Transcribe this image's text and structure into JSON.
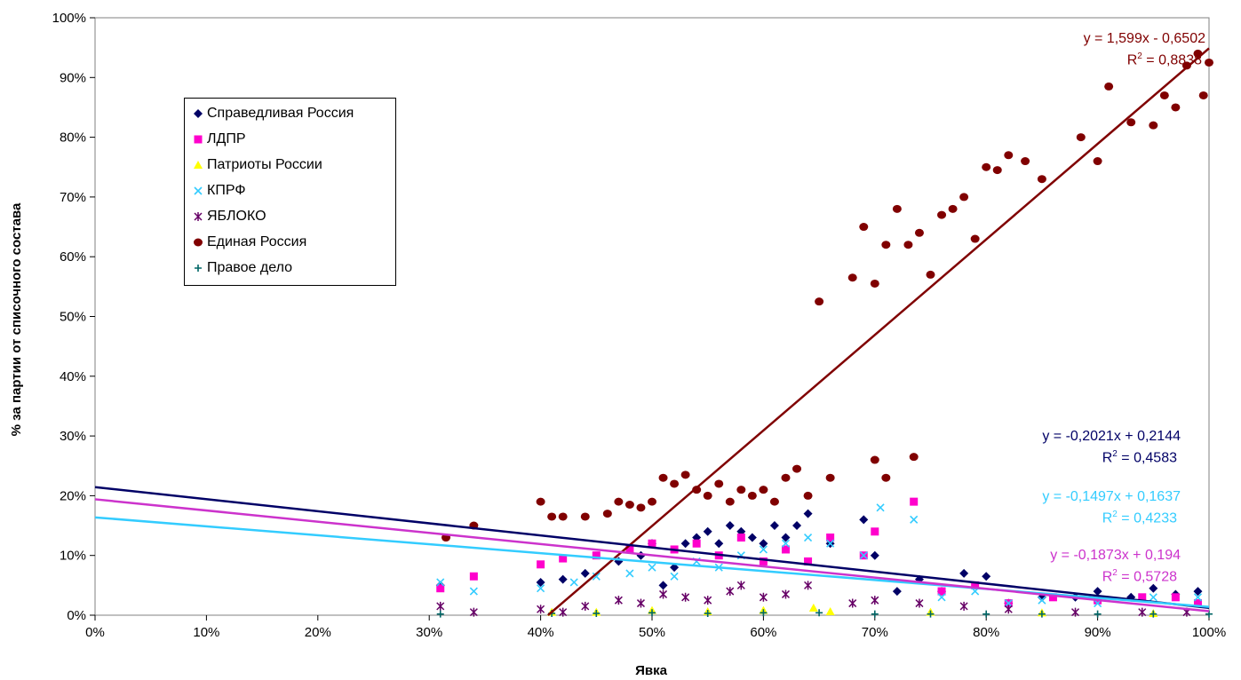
{
  "chart_data": {
    "type": "scatter",
    "xlabel": "Явка",
    "ylabel": "% за партии от списочного состава",
    "xlim": [
      0,
      1
    ],
    "ylim": [
      0,
      1
    ],
    "x_ticks": [
      "0%",
      "10%",
      "20%",
      "30%",
      "40%",
      "50%",
      "60%",
      "70%",
      "80%",
      "90%",
      "100%"
    ],
    "y_ticks": [
      "0%",
      "10%",
      "20%",
      "30%",
      "40%",
      "50%",
      "60%",
      "70%",
      "80%",
      "90%",
      "100%"
    ],
    "grid": false,
    "legend_position": "top-left",
    "series": [
      {
        "name": "Справедливая Россия",
        "color": "#000066",
        "marker": "diamond",
        "points": [
          [
            0.31,
            0.05
          ],
          [
            0.4,
            0.055
          ],
          [
            0.42,
            0.06
          ],
          [
            0.44,
            0.07
          ],
          [
            0.47,
            0.09
          ],
          [
            0.49,
            0.1
          ],
          [
            0.5,
            0.12
          ],
          [
            0.51,
            0.05
          ],
          [
            0.52,
            0.08
          ],
          [
            0.53,
            0.12
          ],
          [
            0.54,
            0.13
          ],
          [
            0.55,
            0.14
          ],
          [
            0.56,
            0.12
          ],
          [
            0.57,
            0.15
          ],
          [
            0.58,
            0.14
          ],
          [
            0.59,
            0.13
          ],
          [
            0.6,
            0.12
          ],
          [
            0.61,
            0.15
          ],
          [
            0.62,
            0.13
          ],
          [
            0.63,
            0.15
          ],
          [
            0.64,
            0.17
          ],
          [
            0.66,
            0.12
          ],
          [
            0.69,
            0.16
          ],
          [
            0.7,
            0.1
          ],
          [
            0.72,
            0.04
          ],
          [
            0.74,
            0.06
          ],
          [
            0.76,
            0.04
          ],
          [
            0.78,
            0.07
          ],
          [
            0.8,
            0.065
          ],
          [
            0.82,
            0.02
          ],
          [
            0.85,
            0.03
          ],
          [
            0.88,
            0.03
          ],
          [
            0.9,
            0.04
          ],
          [
            0.93,
            0.03
          ],
          [
            0.95,
            0.045
          ],
          [
            0.97,
            0.035
          ],
          [
            0.99,
            0.04
          ]
        ]
      },
      {
        "name": "ЛДПР",
        "color": "#FF00CC",
        "marker": "square",
        "points": [
          [
            0.31,
            0.045
          ],
          [
            0.34,
            0.065
          ],
          [
            0.4,
            0.085
          ],
          [
            0.42,
            0.095
          ],
          [
            0.45,
            0.1
          ],
          [
            0.48,
            0.11
          ],
          [
            0.5,
            0.12
          ],
          [
            0.52,
            0.11
          ],
          [
            0.54,
            0.12
          ],
          [
            0.56,
            0.1
          ],
          [
            0.58,
            0.13
          ],
          [
            0.6,
            0.09
          ],
          [
            0.62,
            0.11
          ],
          [
            0.64,
            0.09
          ],
          [
            0.66,
            0.13
          ],
          [
            0.69,
            0.1
          ],
          [
            0.7,
            0.14
          ],
          [
            0.735,
            0.19
          ],
          [
            0.76,
            0.04
          ],
          [
            0.79,
            0.05
          ],
          [
            0.82,
            0.02
          ],
          [
            0.86,
            0.03
          ],
          [
            0.9,
            0.025
          ],
          [
            0.94,
            0.03
          ],
          [
            0.97,
            0.03
          ],
          [
            0.99,
            0.02
          ]
        ]
      },
      {
        "name": "Патриоты России",
        "color": "#FFFF00",
        "marker": "triangle",
        "points": [
          [
            0.41,
            0.005
          ],
          [
            0.45,
            0.005
          ],
          [
            0.5,
            0.008
          ],
          [
            0.55,
            0.006
          ],
          [
            0.6,
            0.008
          ],
          [
            0.645,
            0.012
          ],
          [
            0.66,
            0.006
          ],
          [
            0.75,
            0.005
          ],
          [
            0.85,
            0.004
          ],
          [
            0.95,
            0.003
          ]
        ]
      },
      {
        "name": "КПРФ",
        "color": "#33CCFF",
        "marker": "x",
        "points": [
          [
            0.31,
            0.055
          ],
          [
            0.34,
            0.04
          ],
          [
            0.4,
            0.045
          ],
          [
            0.43,
            0.055
          ],
          [
            0.45,
            0.065
          ],
          [
            0.48,
            0.07
          ],
          [
            0.5,
            0.08
          ],
          [
            0.52,
            0.065
          ],
          [
            0.54,
            0.09
          ],
          [
            0.56,
            0.08
          ],
          [
            0.58,
            0.1
          ],
          [
            0.6,
            0.11
          ],
          [
            0.62,
            0.12
          ],
          [
            0.64,
            0.13
          ],
          [
            0.66,
            0.12
          ],
          [
            0.69,
            0.1
          ],
          [
            0.705,
            0.18
          ],
          [
            0.735,
            0.16
          ],
          [
            0.76,
            0.03
          ],
          [
            0.79,
            0.04
          ],
          [
            0.82,
            0.02
          ],
          [
            0.85,
            0.025
          ],
          [
            0.9,
            0.02
          ],
          [
            0.95,
            0.03
          ],
          [
            0.99,
            0.03
          ]
        ]
      },
      {
        "name": "ЯБЛОКО",
        "color": "#660066",
        "marker": "star",
        "points": [
          [
            0.31,
            0.015
          ],
          [
            0.34,
            0.005
          ],
          [
            0.4,
            0.01
          ],
          [
            0.42,
            0.005
          ],
          [
            0.44,
            0.015
          ],
          [
            0.47,
            0.025
          ],
          [
            0.49,
            0.02
          ],
          [
            0.51,
            0.035
          ],
          [
            0.53,
            0.03
          ],
          [
            0.55,
            0.025
          ],
          [
            0.57,
            0.04
          ],
          [
            0.58,
            0.05
          ],
          [
            0.6,
            0.03
          ],
          [
            0.62,
            0.035
          ],
          [
            0.64,
            0.05
          ],
          [
            0.68,
            0.02
          ],
          [
            0.7,
            0.025
          ],
          [
            0.74,
            0.02
          ],
          [
            0.78,
            0.015
          ],
          [
            0.82,
            0.01
          ],
          [
            0.88,
            0.005
          ],
          [
            0.94,
            0.005
          ],
          [
            0.98,
            0.005
          ]
        ]
      },
      {
        "name": "Единая Россия",
        "color": "#800000",
        "marker": "circle",
        "points": [
          [
            0.315,
            0.13
          ],
          [
            0.34,
            0.15
          ],
          [
            0.4,
            0.19
          ],
          [
            0.41,
            0.165
          ],
          [
            0.42,
            0.165
          ],
          [
            0.44,
            0.165
          ],
          [
            0.46,
            0.17
          ],
          [
            0.47,
            0.19
          ],
          [
            0.48,
            0.185
          ],
          [
            0.49,
            0.18
          ],
          [
            0.5,
            0.19
          ],
          [
            0.51,
            0.23
          ],
          [
            0.52,
            0.22
          ],
          [
            0.53,
            0.235
          ],
          [
            0.54,
            0.21
          ],
          [
            0.55,
            0.2
          ],
          [
            0.56,
            0.22
          ],
          [
            0.57,
            0.19
          ],
          [
            0.58,
            0.21
          ],
          [
            0.59,
            0.2
          ],
          [
            0.6,
            0.21
          ],
          [
            0.61,
            0.19
          ],
          [
            0.62,
            0.23
          ],
          [
            0.63,
            0.245
          ],
          [
            0.64,
            0.2
          ],
          [
            0.65,
            0.525
          ],
          [
            0.66,
            0.23
          ],
          [
            0.68,
            0.565
          ],
          [
            0.69,
            0.65
          ],
          [
            0.7,
            0.26
          ],
          [
            0.7,
            0.555
          ],
          [
            0.71,
            0.23
          ],
          [
            0.71,
            0.62
          ],
          [
            0.72,
            0.68
          ],
          [
            0.73,
            0.62
          ],
          [
            0.735,
            0.265
          ],
          [
            0.74,
            0.64
          ],
          [
            0.75,
            0.57
          ],
          [
            0.76,
            0.67
          ],
          [
            0.77,
            0.68
          ],
          [
            0.78,
            0.7
          ],
          [
            0.79,
            0.63
          ],
          [
            0.8,
            0.75
          ],
          [
            0.81,
            0.745
          ],
          [
            0.82,
            0.77
          ],
          [
            0.835,
            0.76
          ],
          [
            0.85,
            0.73
          ],
          [
            0.885,
            0.8
          ],
          [
            0.9,
            0.76
          ],
          [
            0.91,
            0.885
          ],
          [
            0.93,
            0.825
          ],
          [
            0.95,
            0.82
          ],
          [
            0.96,
            0.87
          ],
          [
            0.97,
            0.85
          ],
          [
            0.98,
            0.92
          ],
          [
            0.99,
            0.94
          ],
          [
            0.995,
            0.87
          ],
          [
            1.0,
            0.925
          ]
        ]
      },
      {
        "name": "Правое дело",
        "color": "#006666",
        "marker": "plus",
        "points": [
          [
            0.31,
            0.002
          ],
          [
            0.41,
            0.003
          ],
          [
            0.45,
            0.003
          ],
          [
            0.5,
            0.004
          ],
          [
            0.55,
            0.003
          ],
          [
            0.6,
            0.004
          ],
          [
            0.65,
            0.004
          ],
          [
            0.7,
            0.002
          ],
          [
            0.75,
            0.002
          ],
          [
            0.8,
            0.002
          ],
          [
            0.85,
            0.002
          ],
          [
            0.9,
            0.002
          ],
          [
            0.95,
            0.002
          ],
          [
            1.0,
            0.002
          ]
        ]
      }
    ],
    "trendlines": [
      {
        "series": "Единая Россия",
        "slope": 1.599,
        "intercept": -0.6502,
        "equation": "y = 1,599x - 0,6502",
        "r2": "R² = 0,8838",
        "color": "#800000"
      },
      {
        "series": "Справедливая Россия",
        "slope": -0.2021,
        "intercept": 0.2144,
        "equation": "y = -0,2021x + 0,2144",
        "r2": "R² = 0,4583",
        "color": "#000066"
      },
      {
        "series": "КПРФ",
        "slope": -0.1497,
        "intercept": 0.1637,
        "equation": "y = -0,1497x + 0,1637",
        "r2": "R² = 0,4233",
        "color": "#33CCFF"
      },
      {
        "series": "ЛДПР",
        "slope": -0.1873,
        "intercept": 0.194,
        "equation": "y = -0,1873x + 0,194",
        "r2": "R² = 0,5728",
        "color": "#CC33CC"
      }
    ]
  }
}
